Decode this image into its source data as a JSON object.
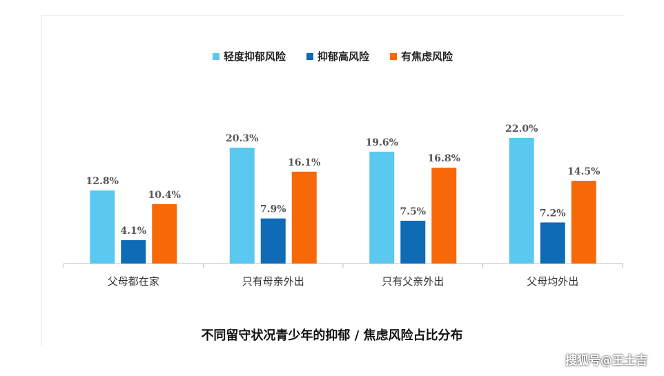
{
  "chart_data": {
    "type": "bar",
    "title": "不同留守状况青少年的抑郁 / 焦虑风险占比分布",
    "categories": [
      "父母都在家",
      "只有母亲外出",
      "只有父亲外出",
      "父母均外出"
    ],
    "series": [
      {
        "name": "轻度抑郁风险",
        "color": "#5bc8f0",
        "values": [
          12.8,
          20.3,
          19.6,
          22.0
        ]
      },
      {
        "name": "抑郁高风险",
        "color": "#0f6bb5",
        "values": [
          4.1,
          7.9,
          7.5,
          7.2
        ]
      },
      {
        "name": "有焦虑风险",
        "color": "#f76908",
        "values": [
          10.4,
          16.1,
          16.8,
          14.5
        ]
      }
    ],
    "value_suffix": "%",
    "ylim": [
      0,
      25
    ],
    "legend_position": "top-center",
    "grid": false
  },
  "watermark": "搜狐号@王土吉"
}
